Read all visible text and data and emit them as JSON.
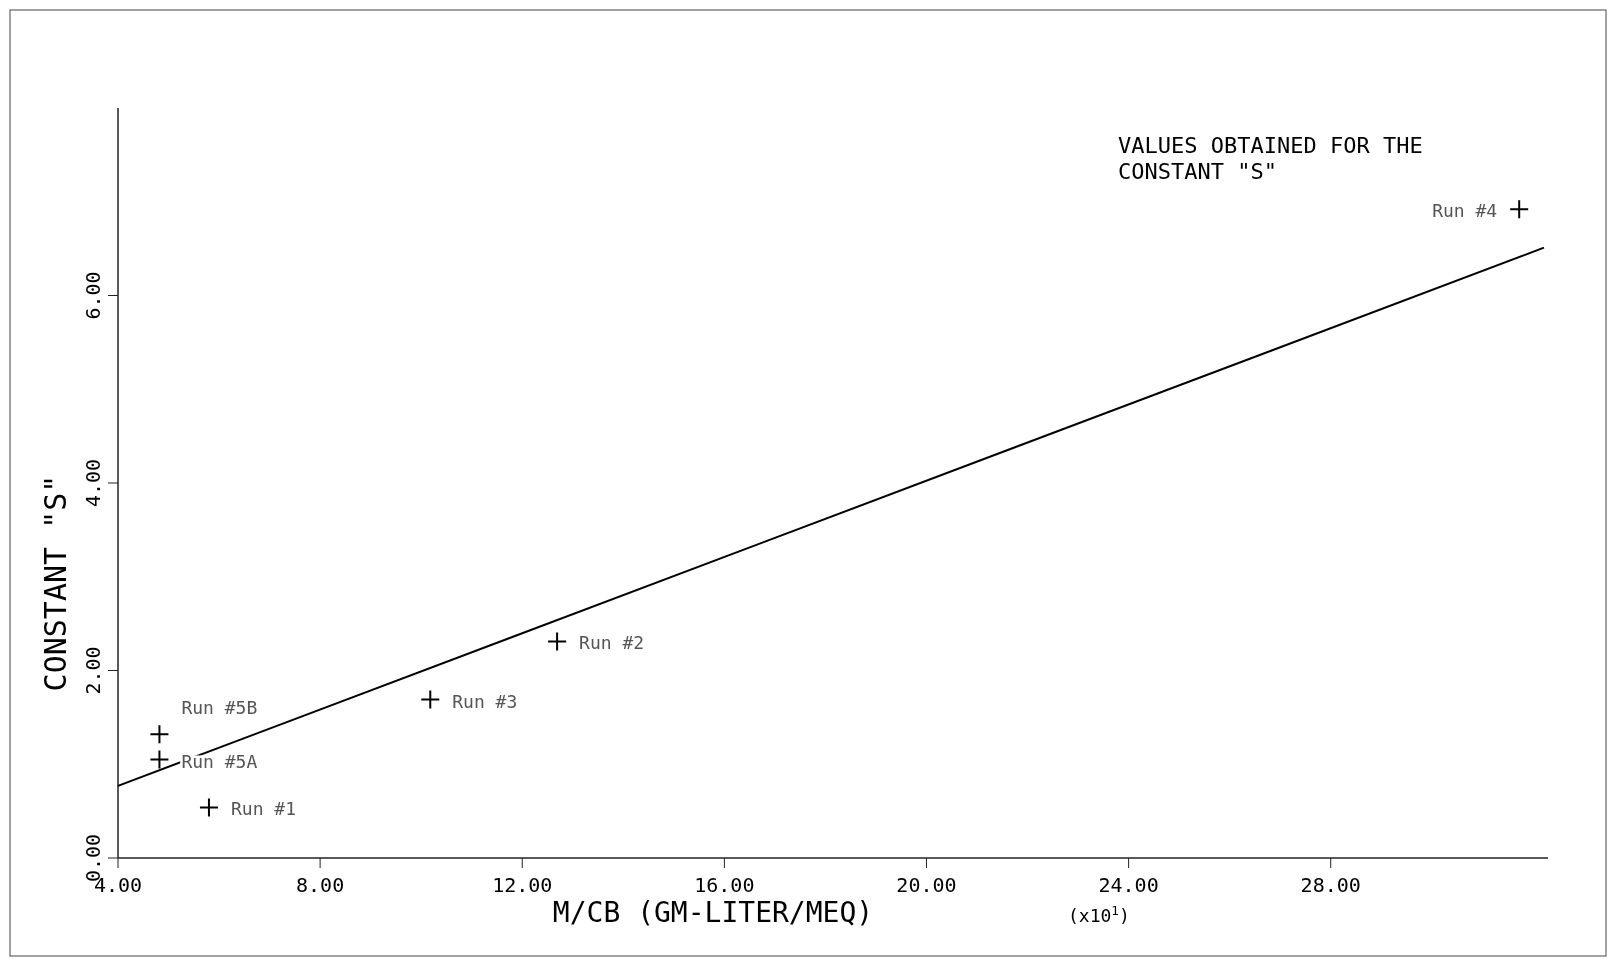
{
  "chart_data": {
    "type": "scatter",
    "xlabel": "M/CB (GM-LITER/MEQ)",
    "ylabel": "CONSTANT \"S\"",
    "series": [
      {
        "color": "#000000",
        "marker": "cross",
        "x": [
          4.82,
          4.82,
          5.8,
          10.18,
          12.69,
          31.73
        ],
        "values": [
          1.32,
          1.05,
          0.54,
          1.69,
          2.31,
          6.92
        ]
      },
      {
        "type": "line",
        "color": "#000000",
        "line_style": "solid",
        "marker": "none",
        "x": [
          4,
          32.22
        ],
        "values": [
          0.77,
          6.51
        ]
      }
    ],
    "xlim": [
      4,
      32.3
    ],
    "ylim": [
      0,
      8.0
    ],
    "xticks": [
      {
        "value": 4,
        "label": "4.00"
      },
      {
        "value": 8,
        "label": "8.00"
      },
      {
        "value": 12,
        "label": "12.00"
      },
      {
        "value": 16,
        "label": "16.00"
      },
      {
        "value": 20,
        "label": "20.00"
      },
      {
        "value": 24,
        "label": "24.00"
      },
      {
        "value": 28,
        "label": "28.00"
      }
    ],
    "yticks": [
      {
        "value": 0,
        "label": "0.00"
      },
      {
        "value": 2,
        "label": "2.00"
      },
      {
        "value": 4,
        "label": "4.00"
      },
      {
        "value": 6,
        "label": "6.00"
      }
    ],
    "grid": false,
    "annotations": [
      "VALUES OBTAINED FOR THE CONSTANT \"S\"",
      "(x10$^{1}$)",
      {
        "text": "Run #5B",
        "x": 4.82,
        "y": 1.32
      },
      {
        "text": "Run #5A",
        "x": 4.82,
        "y": 1.05
      },
      {
        "text": "Run #1",
        "x": 5.8,
        "y": 0.54
      },
      {
        "text": "Run #3",
        "x": 10.18,
        "y": 1.69
      },
      {
        "text": "Run #2",
        "x": 12.69,
        "y": 2.31
      },
      {
        "text": "Run #4",
        "x": 31.73,
        "y": 6.92
      }
    ]
  }
}
